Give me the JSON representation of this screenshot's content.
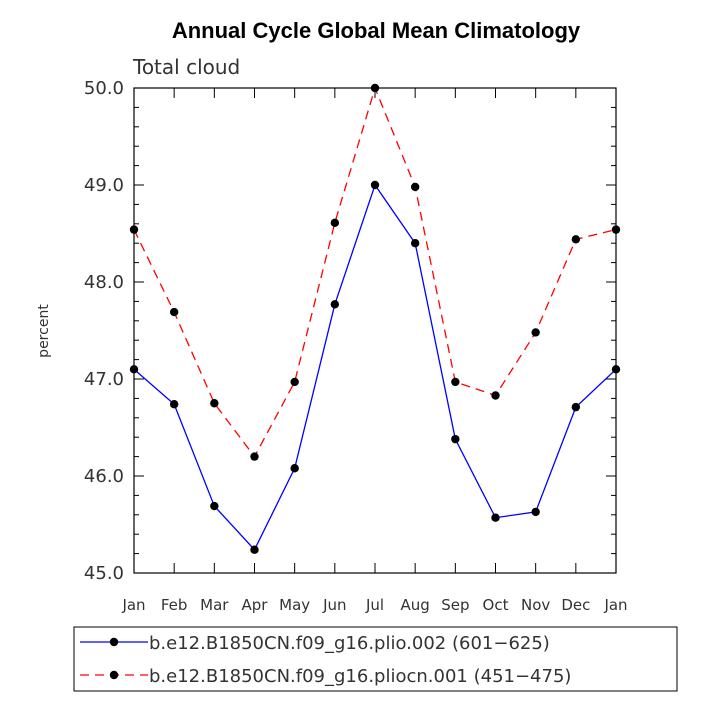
{
  "chart_data": {
    "type": "line",
    "title": "Annual Cycle Global Mean Climatology",
    "subtitle": "Total cloud",
    "ylabel": "percent",
    "xlabel": "",
    "ylim": [
      45.0,
      50.0
    ],
    "yticks": [
      "45.0",
      "46.0",
      "47.0",
      "48.0",
      "49.0",
      "50.0"
    ],
    "categories": [
      "Jan",
      "Feb",
      "Mar",
      "Apr",
      "May",
      "Jun",
      "Jul",
      "Aug",
      "Sep",
      "Oct",
      "Nov",
      "Dec",
      "Jan"
    ],
    "series": [
      {
        "name": "b.e12.B1850CN.f09_g16.plio.002 (601−625)",
        "color": "#0000ff",
        "style": "solid",
        "values": [
          47.1,
          46.74,
          45.69,
          45.24,
          46.08,
          47.77,
          49.0,
          48.4,
          46.38,
          45.57,
          45.63,
          46.71,
          47.1
        ]
      },
      {
        "name": "b.e12.B1850CN.f09_g16.pliocn.001 (451−475)",
        "color": "#ff0000",
        "style": "dashed",
        "values": [
          48.54,
          47.69,
          46.75,
          46.2,
          46.97,
          48.61,
          50.0,
          48.98,
          46.97,
          46.83,
          47.48,
          48.44,
          48.54
        ]
      }
    ],
    "legend_placement": "bottom",
    "grid": false
  }
}
